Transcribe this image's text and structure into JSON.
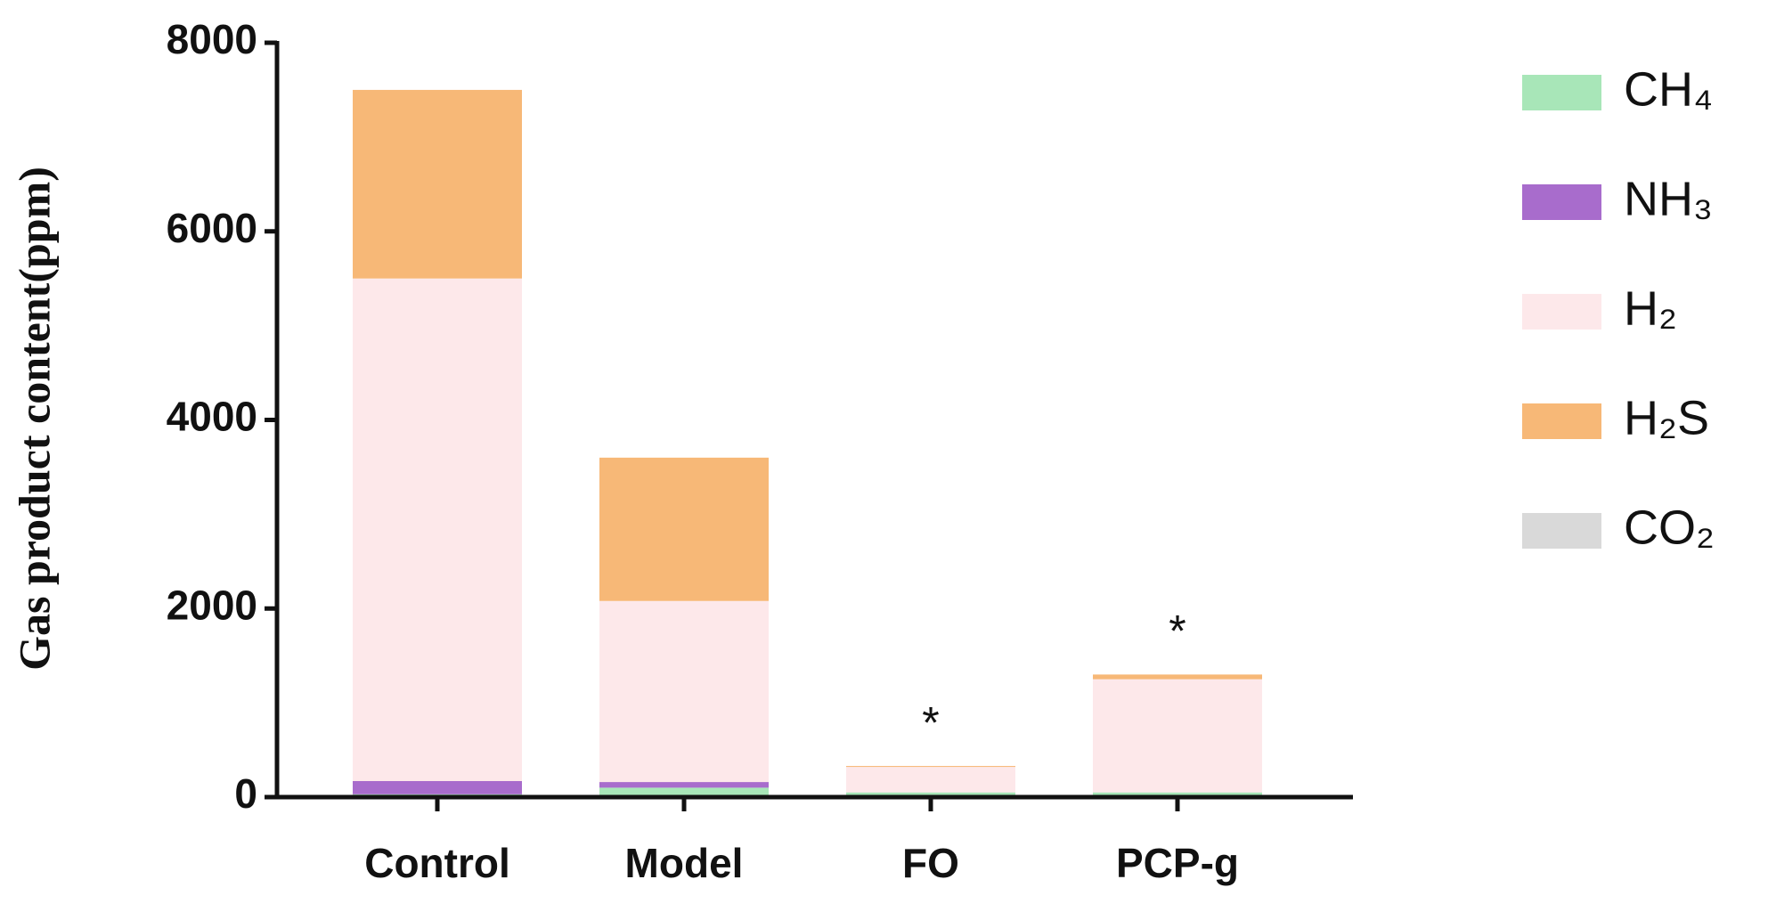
{
  "chart_data": {
    "type": "stacked_bar",
    "y_label": "Gas product content(ppm)",
    "categories": [
      "Control",
      "Model",
      "FO",
      "PCP-g"
    ],
    "series": [
      {
        "name": "CH₄",
        "color": "#a8e6b8",
        "values": [
          30,
          100,
          50,
          50
        ]
      },
      {
        "name": "NH₃",
        "color": "#a86ccc",
        "values": [
          140,
          60,
          0,
          0
        ]
      },
      {
        "name": "H₂",
        "color": "#fde8ea",
        "values": [
          5330,
          1920,
          270,
          1200
        ]
      },
      {
        "name": "H₂S",
        "color": "#f7b877",
        "values": [
          2000,
          1520,
          10,
          50
        ]
      },
      {
        "name": "CO₂",
        "color": "#d9d9d9",
        "values": [
          0,
          0,
          0,
          0
        ]
      }
    ],
    "annotations": [
      {
        "text": "*",
        "category": "FO"
      },
      {
        "text": "*",
        "category": "PCP-g"
      }
    ],
    "ylim": [
      0,
      8000
    ],
    "yticks": [
      0,
      2000,
      4000,
      6000,
      8000
    ],
    "legend": "right"
  }
}
